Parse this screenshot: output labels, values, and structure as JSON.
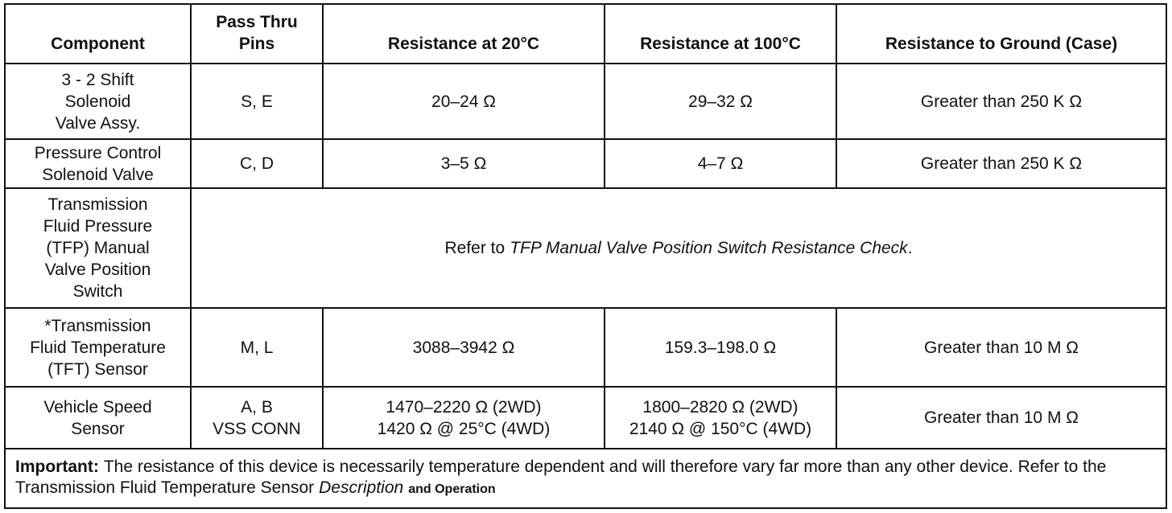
{
  "table": {
    "header": [
      [
        "Component"
      ],
      [
        "Pass Thru",
        "Pins"
      ],
      [
        "Resistance at 20°C"
      ],
      [
        "Resistance at 100°C"
      ],
      [
        "Resistance to Ground (Case)"
      ]
    ],
    "rows": [
      [
        [
          "3 - 2 Shift",
          "Solenoid",
          "Valve Assy."
        ],
        [
          "S, E"
        ],
        [
          "20–24 Ω"
        ],
        [
          "29–32 Ω"
        ],
        [
          "Greater than 250 K Ω"
        ]
      ],
      [
        [
          "Pressure Control",
          "Solenoid Valve"
        ],
        [
          "C, D"
        ],
        [
          "3–5 Ω"
        ],
        [
          "4–7 Ω"
        ],
        [
          "Greater than 250 K Ω"
        ]
      ],
      [
        [
          "Transmission",
          "Fluid Pressure",
          "(TFP) Manual",
          "Valve Position",
          "Switch"
        ],
        {
          "prefix": "Refer to",
          "emphasis": "TFP Manual Valve Position Switch Resistance Check",
          "suffix": "."
        }
      ],
      [
        [
          "*Transmission",
          "Fluid Temperature",
          "(TFT) Sensor"
        ],
        [
          "M, L"
        ],
        [
          "3088–3942 Ω"
        ],
        [
          "159.3–198.0 Ω"
        ],
        [
          "Greater than 10 M Ω"
        ]
      ],
      [
        [
          "Vehicle Speed",
          "Sensor"
        ],
        [
          "A, B",
          "VSS CONN"
        ],
        [
          "1470–2220 Ω (2WD)",
          "1420 Ω @ 25°C (4WD)"
        ],
        [
          "1800–2820 Ω (2WD)",
          "2140 Ω @ 150°C (4WD)"
        ],
        [
          "Greater than 10 M Ω"
        ]
      ]
    ],
    "footnote": {
      "label": "Important:",
      "text": "The resistance of this device is necessarily temperature dependent and will therefore vary far more than any other device. Refer to the Transmission Fluid Temperature Sensor",
      "emphasis": "Description",
      "suffix": "and Operation"
    }
  }
}
